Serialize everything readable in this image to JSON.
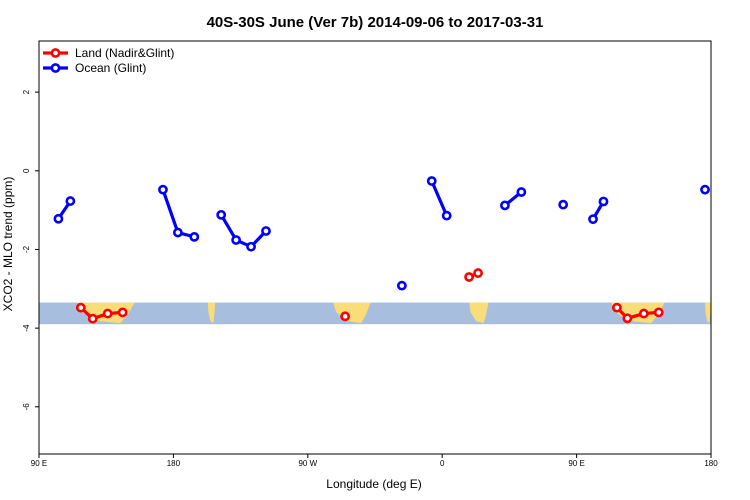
{
  "chart_data": {
    "type": "line",
    "title": "40S-30S June (Ver 7b)   2014-09-06 to 2017-03-31",
    "xlabel": "Longitude (deg E)",
    "ylabel": "XCO2 - MLO trend (ppm)",
    "xlim": [
      90,
      540
    ],
    "ylim": [
      -7.2,
      3.3
    ],
    "x_ticks": [
      {
        "value": 90,
        "label": "90 E"
      },
      {
        "value": 180,
        "label": "180"
      },
      {
        "value": 270,
        "label": "90 W"
      },
      {
        "value": 360,
        "label": "0"
      },
      {
        "value": 450,
        "label": "90 E"
      },
      {
        "value": 540,
        "label": "180"
      }
    ],
    "y_ticks": [
      {
        "value": 2,
        "label": "2"
      },
      {
        "value": 0,
        "label": "0"
      },
      {
        "value": -2,
        "label": "-2"
      },
      {
        "value": -4,
        "label": "-4"
      },
      {
        "value": -6,
        "label": "-6"
      }
    ],
    "map_band": {
      "y_range": [
        -3.9,
        -3.35
      ],
      "ocean_color": "#a7bedf",
      "land_color": "#f9dd78",
      "land_ranges": [
        [
          116,
          154
        ],
        [
          287,
          312
        ],
        [
          378,
          391
        ],
        [
          203,
          208
        ],
        [
          473,
          509
        ],
        [
          536,
          540
        ]
      ]
    },
    "legend": {
      "position": "top-left",
      "entries": [
        {
          "label": "Land (Nadir&Glint)",
          "color": "#ff0000"
        },
        {
          "label": "Ocean (Glint)",
          "color": "#0000ff"
        }
      ]
    },
    "series": [
      {
        "name": "Land (Nadir&Glint)",
        "color": "#ff0000",
        "segments": [
          [
            [
              118,
              -3.48
            ],
            [
              126,
              -3.76
            ],
            [
              136,
              -3.63
            ],
            [
              146,
              -3.6
            ]
          ],
          [
            [
              295,
              -3.7
            ]
          ],
          [
            [
              378,
              -2.7
            ],
            [
              384,
              -2.6
            ]
          ],
          [
            [
              477,
              -3.48
            ],
            [
              484,
              -3.75
            ],
            [
              495,
              -3.63
            ],
            [
              505,
              -3.6
            ]
          ]
        ]
      },
      {
        "name": "Ocean (Glint)",
        "color": "#0000ff",
        "segments": [
          [
            [
              103,
              -1.22
            ],
            [
              111,
              -0.77
            ]
          ],
          [
            [
              173,
              -0.48
            ],
            [
              183,
              -1.57
            ],
            [
              194,
              -1.68
            ]
          ],
          [
            [
              212,
              -1.12
            ],
            [
              222,
              -1.76
            ],
            [
              232,
              -1.93
            ],
            [
              242,
              -1.53
            ]
          ],
          [
            [
              333,
              -2.92
            ]
          ],
          [
            [
              353,
              -0.26
            ],
            [
              363,
              -1.14
            ]
          ],
          [
            [
              402,
              -0.88
            ],
            [
              413,
              -0.54
            ]
          ],
          [
            [
              441,
              -0.86
            ]
          ],
          [
            [
              461,
              -1.23
            ],
            [
              468,
              -0.78
            ]
          ],
          [
            [
              536,
              -0.48
            ]
          ]
        ]
      }
    ]
  }
}
